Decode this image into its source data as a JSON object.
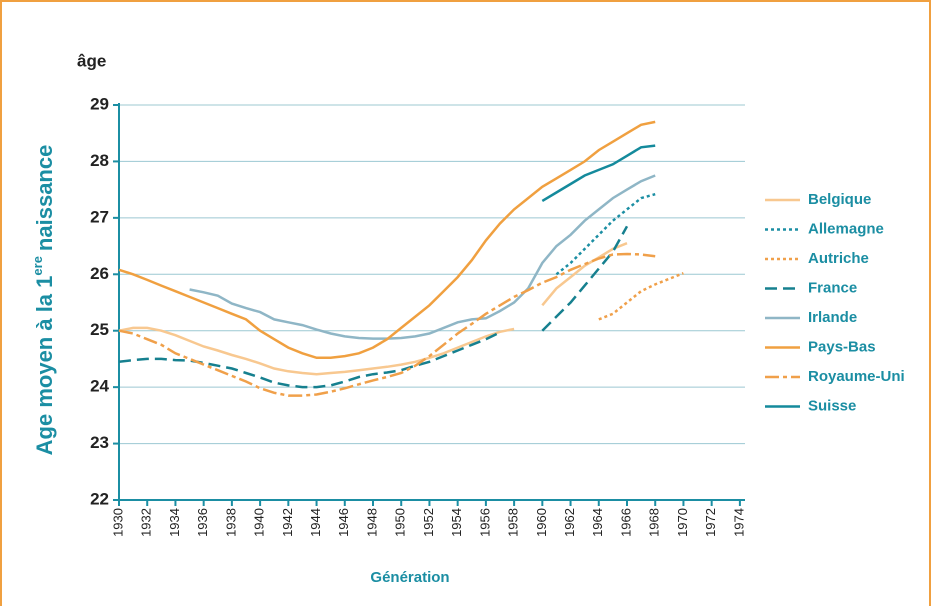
{
  "chart_data": {
    "type": "line",
    "unit_label": "âge",
    "ylabel_parts": [
      "Age moyen à la 1",
      "ere",
      "naissance"
    ],
    "xlabel": "Génération",
    "x": [
      1930,
      1931,
      1932,
      1933,
      1934,
      1935,
      1936,
      1937,
      1938,
      1939,
      1940,
      1941,
      1942,
      1943,
      1944,
      1945,
      1946,
      1947,
      1948,
      1949,
      1950,
      1951,
      1952,
      1953,
      1954,
      1955,
      1956,
      1957,
      1958,
      1959,
      1960,
      1961,
      1962,
      1963,
      1964,
      1965,
      1966,
      1967,
      1968,
      1969,
      1970
    ],
    "series": [
      {
        "name": "Belgique",
        "color": "#f8c890",
        "dash": "none",
        "values": [
          25.0,
          25.05,
          25.05,
          25.0,
          24.92,
          24.82,
          24.72,
          24.65,
          24.57,
          24.5,
          24.42,
          24.33,
          24.28,
          24.25,
          24.23,
          24.25,
          24.27,
          24.3,
          24.33,
          24.36,
          24.4,
          24.45,
          24.52,
          24.6,
          24.7,
          24.8,
          24.9,
          24.98,
          25.03,
          null,
          25.45,
          25.75,
          25.95,
          26.15,
          26.3,
          26.45,
          26.55,
          null,
          null,
          null,
          null
        ]
      },
      {
        "name": "Allemagne",
        "color": "#1b8ea3",
        "dash": "3,3",
        "values": [
          null,
          null,
          null,
          null,
          null,
          null,
          null,
          null,
          null,
          null,
          null,
          null,
          null,
          null,
          null,
          null,
          null,
          null,
          null,
          null,
          null,
          null,
          null,
          null,
          null,
          null,
          null,
          null,
          null,
          null,
          null,
          26.0,
          26.2,
          26.45,
          26.7,
          26.95,
          27.15,
          27.35,
          27.42,
          null,
          null
        ]
      },
      {
        "name": "Autriche",
        "color": "#f0a04a",
        "dash": "3,3",
        "values": [
          null,
          null,
          null,
          null,
          null,
          null,
          null,
          null,
          null,
          null,
          null,
          null,
          null,
          null,
          null,
          null,
          null,
          null,
          null,
          null,
          null,
          null,
          null,
          null,
          null,
          null,
          null,
          null,
          null,
          null,
          null,
          null,
          null,
          null,
          25.2,
          25.3,
          25.5,
          25.7,
          25.82,
          25.92,
          26.02
        ]
      },
      {
        "name": "France",
        "color": "#16808f",
        "dash": "12,6",
        "values": [
          24.45,
          24.48,
          24.5,
          24.5,
          24.48,
          24.47,
          24.43,
          24.38,
          24.33,
          24.25,
          24.17,
          24.08,
          24.03,
          24.0,
          24.0,
          24.03,
          24.1,
          24.18,
          24.23,
          24.26,
          24.3,
          24.38,
          24.45,
          24.55,
          24.65,
          24.75,
          24.85,
          24.97,
          null,
          null,
          25.0,
          25.25,
          25.5,
          25.8,
          26.1,
          26.4,
          26.85,
          null,
          null,
          null,
          null
        ]
      },
      {
        "name": "Irlande",
        "color": "#8fb6c6",
        "dash": "none",
        "values": [
          null,
          null,
          null,
          null,
          null,
          25.73,
          25.68,
          25.62,
          25.48,
          25.4,
          25.33,
          25.2,
          25.15,
          25.1,
          25.02,
          24.95,
          24.9,
          24.87,
          24.86,
          24.86,
          24.87,
          24.9,
          24.95,
          25.05,
          25.15,
          25.2,
          25.22,
          25.35,
          25.5,
          25.75,
          26.2,
          26.5,
          26.7,
          26.95,
          27.15,
          27.35,
          27.5,
          27.65,
          27.75,
          null,
          null
        ]
      },
      {
        "name": "Pays-Bas",
        "color": "#f0a040",
        "dash": "none",
        "values": [
          26.08,
          26.0,
          25.9,
          25.8,
          25.7,
          25.6,
          25.5,
          25.4,
          25.3,
          25.2,
          25.0,
          24.85,
          24.7,
          24.6,
          24.52,
          24.52,
          24.55,
          24.6,
          24.7,
          24.85,
          25.05,
          25.25,
          25.45,
          25.7,
          25.95,
          26.25,
          26.6,
          26.9,
          27.15,
          27.35,
          27.55,
          27.7,
          27.85,
          28.0,
          28.2,
          28.35,
          28.5,
          28.65,
          28.7,
          null,
          null
        ]
      },
      {
        "name": "Royaume-Uni",
        "color": "#f0a04a",
        "dash": "14,4,4,4",
        "values": [
          25.0,
          24.95,
          24.85,
          24.75,
          24.6,
          24.5,
          24.4,
          24.3,
          24.2,
          24.1,
          23.98,
          23.9,
          23.85,
          23.85,
          23.87,
          23.92,
          23.98,
          24.05,
          24.12,
          24.18,
          24.25,
          24.38,
          24.55,
          24.75,
          24.95,
          25.12,
          25.3,
          25.45,
          25.6,
          25.72,
          25.85,
          25.95,
          26.08,
          26.18,
          26.28,
          26.35,
          26.36,
          26.35,
          26.32,
          null,
          null
        ]
      },
      {
        "name": "Suisse",
        "color": "#148a9c",
        "dash": "none",
        "values": [
          null,
          null,
          null,
          null,
          null,
          null,
          null,
          null,
          null,
          null,
          null,
          null,
          null,
          null,
          null,
          null,
          null,
          null,
          null,
          null,
          null,
          null,
          null,
          null,
          null,
          null,
          null,
          null,
          null,
          null,
          27.3,
          27.45,
          27.6,
          27.75,
          27.85,
          27.95,
          28.1,
          28.25,
          28.28,
          null,
          null
        ]
      }
    ],
    "xlim": [
      1930,
      1975
    ],
    "xticks": [
      1930,
      1932,
      1934,
      1936,
      1938,
      1940,
      1942,
      1944,
      1946,
      1948,
      1950,
      1952,
      1954,
      1956,
      1958,
      1960,
      1962,
      1964,
      1966,
      1968,
      1970,
      1972,
      1974
    ],
    "ylim": [
      22,
      29
    ],
    "yticks": [
      22,
      23,
      24,
      25,
      26,
      27,
      28,
      29
    ],
    "grid": true
  }
}
